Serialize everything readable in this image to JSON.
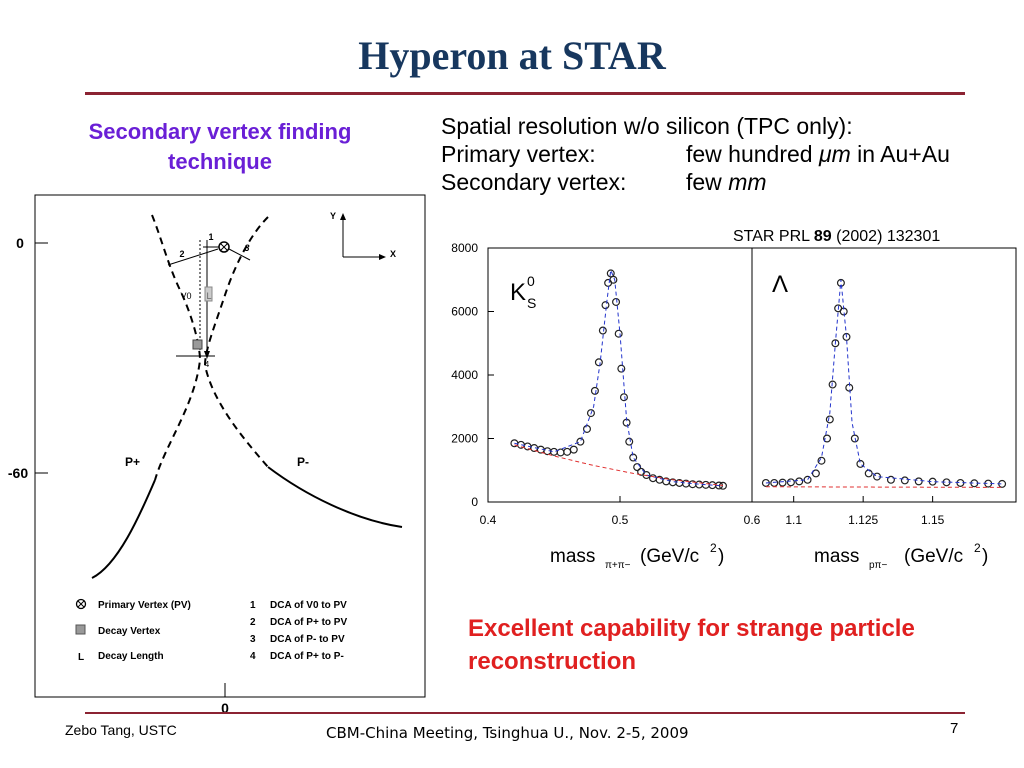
{
  "slide": {
    "title": "Hyperon at STAR",
    "subtitle": "Secondary vertex finding technique",
    "resolution": {
      "heading": "Spatial resolution w/o silicon (TPC only):",
      "primary_label": "Primary vertex:",
      "primary_value_prefix": "few hundred ",
      "primary_value_unit": "μm",
      "primary_value_suffix": " in Au+Au",
      "secondary_label": "Secondary vertex:",
      "secondary_value_prefix": "few ",
      "secondary_value_unit": "mm"
    },
    "reference": {
      "prefix": "STAR PRL ",
      "volume": "89",
      "suffix": " (2002) 132301"
    },
    "conclusion": "Excellent capability for strange particle reconstruction",
    "footer": {
      "author": "Zebo Tang, USTC",
      "meeting": "CBM-China Meeting, Tsinghua U., Nov. 2-5, 2009",
      "page": "7"
    }
  },
  "diagram": {
    "axis_y_top": "0",
    "axis_y_mid": "-60",
    "axis_x_bottom": "0",
    "axis_y_letter": "Y",
    "axis_x_letter": "X",
    "label_1": "1",
    "label_2": "2",
    "label_3": "3",
    "label_4": "4",
    "label_v0": "V0",
    "label_l": "L",
    "label_pplus": "P+",
    "label_pminus": "P-",
    "legend": [
      {
        "symbol": "primary-vertex",
        "text": "Primary Vertex (PV)"
      },
      {
        "symbol": "decay-vertex",
        "text": "Decay Vertex"
      },
      {
        "symbol": "L",
        "text": "Decay Length"
      }
    ],
    "dca_list": [
      {
        "num": "1",
        "text": "DCA of V0 to PV"
      },
      {
        "num": "2",
        "text": "DCA of P+ to PV"
      },
      {
        "num": "3",
        "text": "DCA of P- to PV"
      },
      {
        "num": "4",
        "text": "DCA of P+ to P-"
      }
    ]
  },
  "chart_data": [
    {
      "type": "scatter",
      "title": "",
      "panel_label": {
        "base": "K",
        "sup": "0",
        "sub": "S"
      },
      "xlabel": {
        "base": "mass",
        "sub": "π+π−",
        "unit": "(GeV/c",
        "unit_sup": "2",
        "unit_close": ")"
      },
      "ylabel": "",
      "xlim": [
        0.4,
        0.6
      ],
      "ylim": [
        0,
        8000
      ],
      "x_ticks": [
        "0.4",
        "0.5",
        "0.6"
      ],
      "y_ticks": [
        "0",
        "2000",
        "4000",
        "6000",
        "8000"
      ],
      "series": [
        {
          "style": "markers",
          "x": [
            0.42,
            0.425,
            0.43,
            0.435,
            0.44,
            0.445,
            0.45,
            0.455,
            0.46,
            0.465,
            0.47,
            0.475,
            0.478,
            0.481,
            0.484,
            0.487,
            0.489,
            0.491,
            0.493,
            0.495,
            0.497,
            0.499,
            0.501,
            0.503,
            0.505,
            0.507,
            0.51,
            0.513,
            0.516,
            0.52,
            0.525,
            0.53,
            0.535,
            0.54,
            0.545,
            0.55,
            0.555,
            0.56,
            0.565,
            0.57,
            0.575,
            0.578
          ],
          "y": [
            1850,
            1800,
            1750,
            1700,
            1650,
            1600,
            1580,
            1560,
            1580,
            1650,
            1900,
            2300,
            2800,
            3500,
            4400,
            5400,
            6200,
            6900,
            7200,
            7000,
            6300,
            5300,
            4200,
            3300,
            2500,
            1900,
            1400,
            1100,
            950,
            850,
            750,
            700,
            650,
            620,
            600,
            580,
            560,
            550,
            540,
            530,
            520,
            510
          ]
        },
        {
          "style": "fit-dashed",
          "x": [
            0.42,
            0.45,
            0.47,
            0.48,
            0.485,
            0.49,
            0.493,
            0.496,
            0.5,
            0.505,
            0.51,
            0.52,
            0.54,
            0.56,
            0.578
          ],
          "y": [
            1850,
            1580,
            1900,
            3000,
            4400,
            6300,
            7300,
            7000,
            5300,
            2600,
            1400,
            850,
            640,
            560,
            510
          ]
        },
        {
          "style": "background-dashed",
          "x": [
            0.42,
            0.45,
            0.48,
            0.51,
            0.54,
            0.578
          ],
          "y": [
            1800,
            1450,
            1150,
            900,
            700,
            520
          ]
        }
      ]
    },
    {
      "type": "scatter",
      "title": "",
      "panel_label": {
        "base": "Λ"
      },
      "xlabel": {
        "base": "mass",
        "sub": "pπ−",
        "unit": "(GeV/c",
        "unit_sup": "2",
        "unit_close": ")"
      },
      "ylabel": "",
      "xlim": [
        1.085,
        1.18
      ],
      "ylim": [
        0,
        8000
      ],
      "x_ticks": [
        "1.1",
        "1.125",
        "1.15"
      ],
      "series": [
        {
          "style": "markers",
          "x": [
            1.09,
            1.093,
            1.096,
            1.099,
            1.102,
            1.105,
            1.108,
            1.11,
            1.112,
            1.113,
            1.114,
            1.115,
            1.116,
            1.117,
            1.118,
            1.119,
            1.12,
            1.122,
            1.124,
            1.127,
            1.13,
            1.135,
            1.14,
            1.145,
            1.15,
            1.155,
            1.16,
            1.165,
            1.17,
            1.175
          ],
          "y": [
            600,
            600,
            610,
            620,
            650,
            700,
            900,
            1300,
            2000,
            2600,
            3700,
            5000,
            6100,
            6900,
            6000,
            5200,
            3600,
            2000,
            1200,
            900,
            800,
            700,
            680,
            650,
            640,
            620,
            600,
            590,
            580,
            570
          ]
        },
        {
          "style": "fit-dashed",
          "x": [
            1.09,
            1.105,
            1.11,
            1.113,
            1.115,
            1.117,
            1.119,
            1.121,
            1.124,
            1.13,
            1.15,
            1.175
          ],
          "y": [
            600,
            700,
            1400,
            2800,
            5000,
            7000,
            5200,
            2500,
            1200,
            800,
            640,
            570
          ]
        },
        {
          "style": "background-dashed",
          "x": [
            1.09,
            1.13,
            1.175
          ],
          "y": [
            480,
            470,
            460
          ]
        }
      ]
    }
  ]
}
